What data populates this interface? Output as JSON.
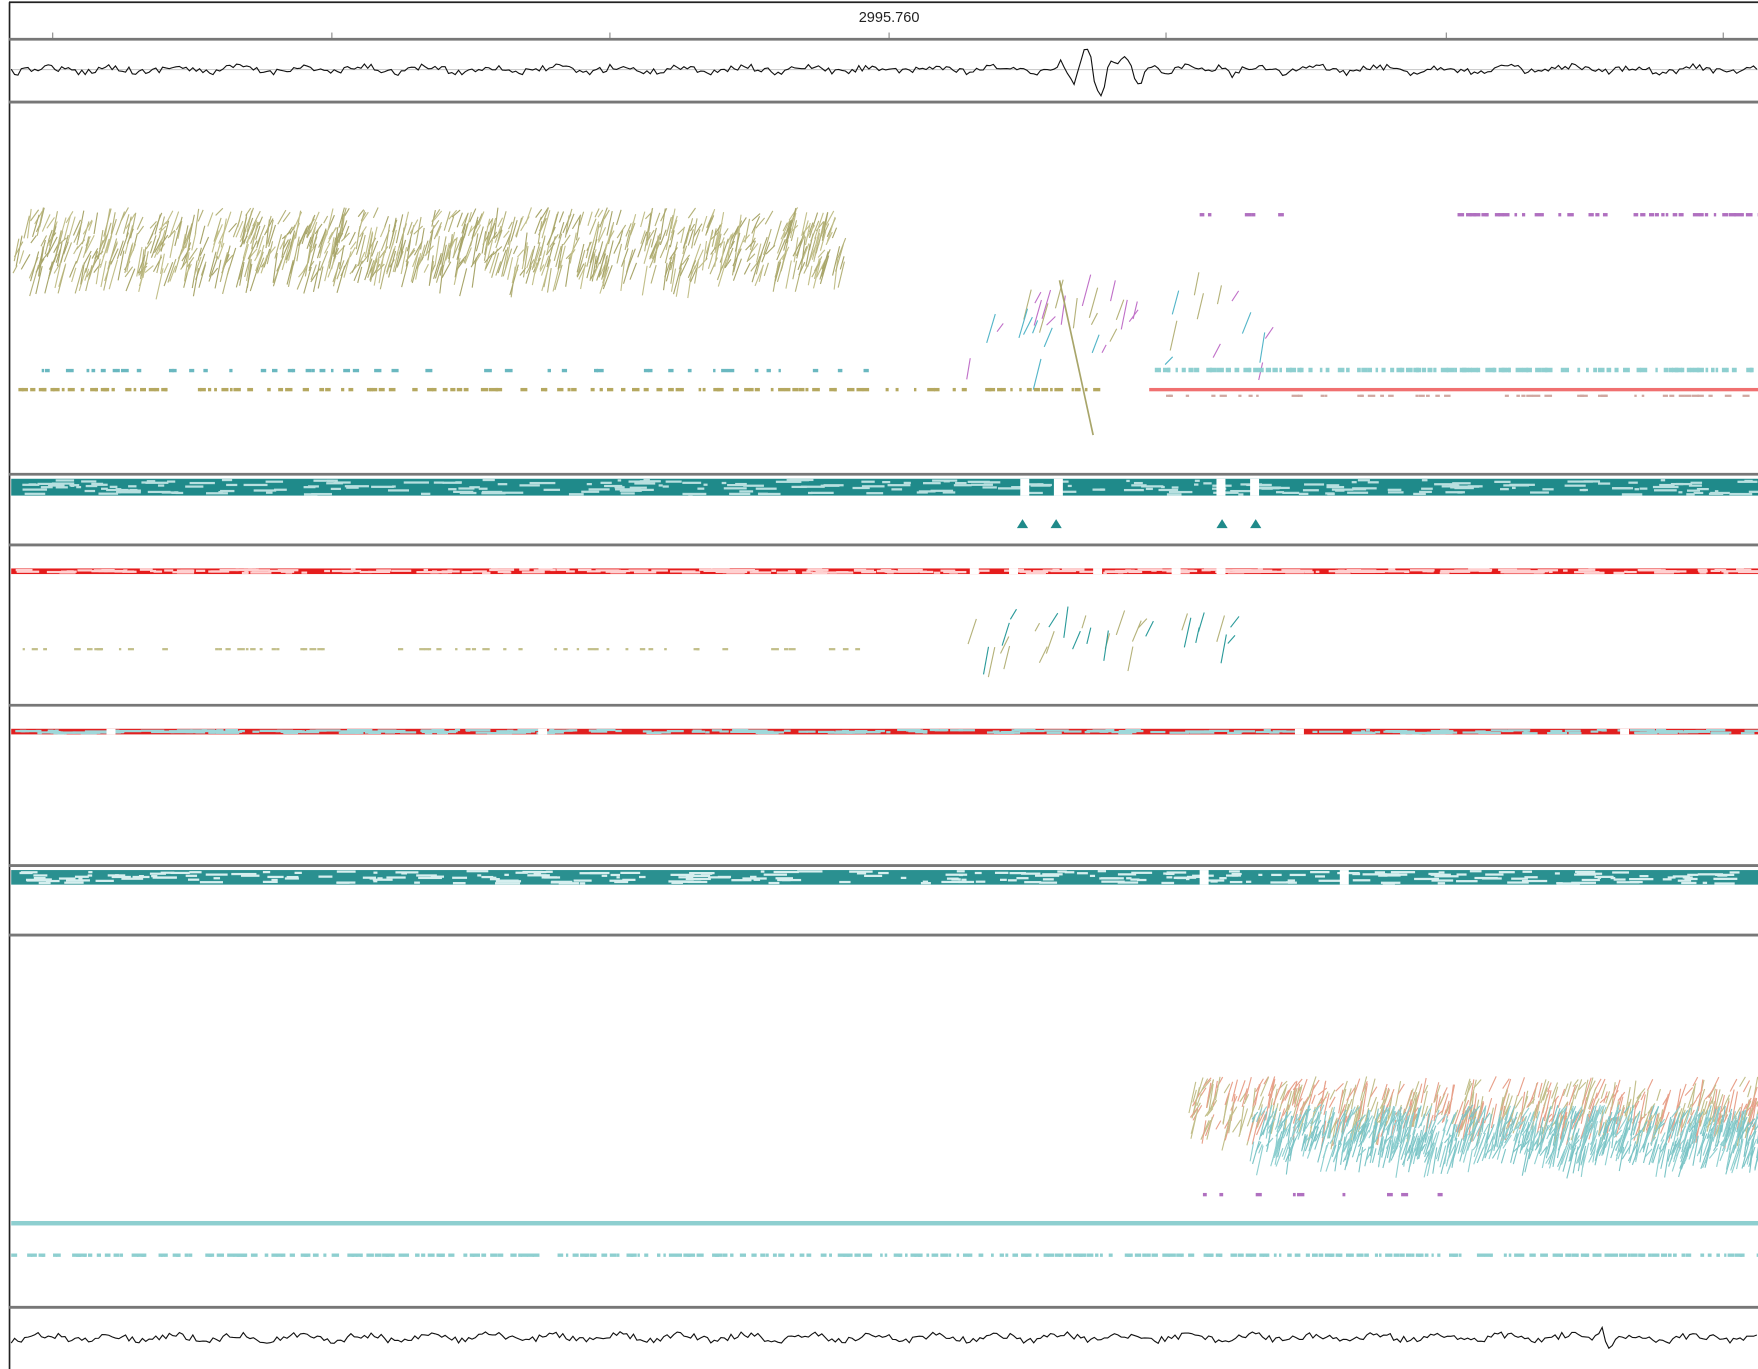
{
  "ruler": {
    "label": "2995.760"
  }
}
